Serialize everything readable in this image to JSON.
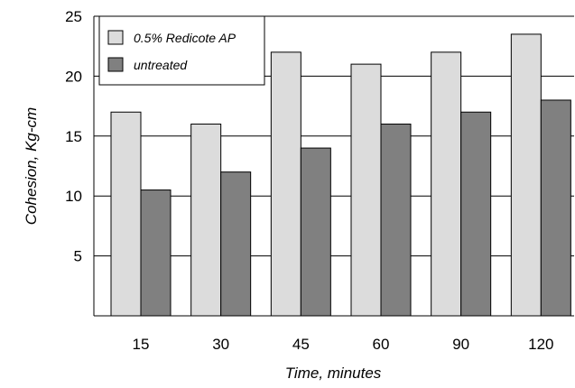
{
  "chart_data": {
    "type": "bar",
    "title": "",
    "xlabel": "Time, minutes",
    "ylabel": "Cohesion, Kg-cm",
    "categories": [
      "15",
      "30",
      "45",
      "60",
      "90",
      "120"
    ],
    "series": [
      {
        "name": "0.5% Redicote AP",
        "values": [
          17,
          16,
          22,
          21,
          22,
          23.5
        ],
        "color": "#dcdcdc"
      },
      {
        "name": "untreated",
        "values": [
          10.5,
          12,
          14,
          16,
          17,
          18
        ],
        "color": "#808080"
      }
    ],
    "ylim": [
      0,
      25
    ],
    "yticks": [
      {
        "value": 5,
        "label": "5"
      },
      {
        "value": 10,
        "label": "10"
      },
      {
        "value": 15,
        "label": "15"
      },
      {
        "value": 20,
        "label": "20"
      },
      {
        "value": 25,
        "label": "25"
      }
    ],
    "grid": true,
    "legend": "top-left"
  }
}
